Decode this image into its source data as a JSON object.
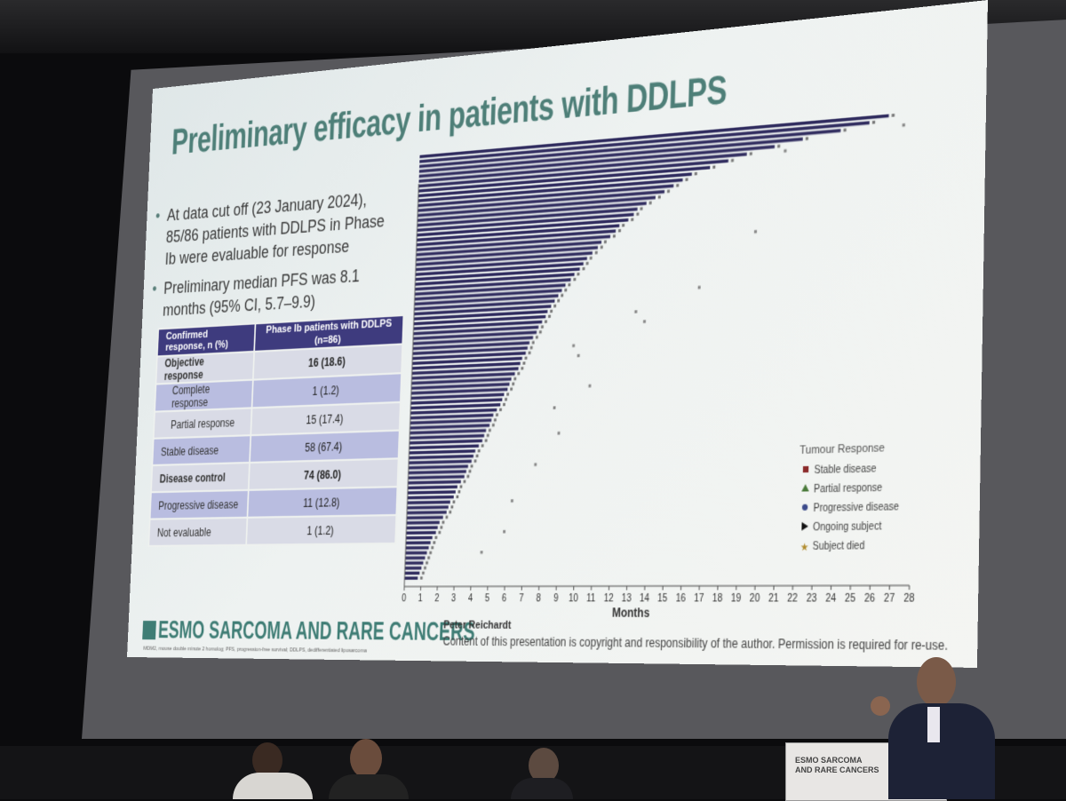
{
  "slide": {
    "title": "Preliminary efficacy in patients with DDLPS",
    "bullets": [
      "At data cut off (23 January 2024), 85/86 patients with DDLPS in Phase Ib were evaluable for response",
      "Preliminary median PFS was 8.1 months (95% CI, 5.7–9.9)"
    ],
    "table": {
      "header_col1": "Confirmed response, n (%)",
      "header_col2": "Phase Ib patients with DDLPS (n=86)",
      "rows": [
        {
          "label": "Objective response",
          "value": "16 (18.6)"
        },
        {
          "label": "Complete response",
          "value": "1 (1.2)"
        },
        {
          "label": "Partial response",
          "value": "15 (17.4)"
        },
        {
          "label": "Stable disease",
          "value": "58 (67.4)"
        },
        {
          "label": "Disease control",
          "value": "74 (86.0)"
        },
        {
          "label": "Progressive disease",
          "value": "11 (12.8)"
        },
        {
          "label": "Not evaluable",
          "value": "1 (1.2)"
        }
      ]
    },
    "footer": {
      "logo": "ESMO SARCOMA AND RARE CANCERS",
      "presenter": "Peter Reichardt",
      "copyright": "Content of this presentation is copyright and responsibility of the author. Permission is required for re-use.",
      "abbreviations": "MDM2, mouse double minute 2 homolog; PFS, progression-free survival; DDLPS, dedifferentiated liposarcoma"
    }
  },
  "chart_data": {
    "type": "bar",
    "orientation": "horizontal swimmer plot",
    "xlabel": "Months",
    "xlim": [
      0,
      28
    ],
    "x_ticks": [
      "0",
      "1",
      "2",
      "3",
      "4",
      "5",
      "6",
      "7",
      "8",
      "9",
      "10",
      "11",
      "12",
      "13",
      "14",
      "15",
      "16",
      "17",
      "18",
      "19",
      "20",
      "21",
      "22",
      "23",
      "24",
      "25",
      "26",
      "27",
      "28"
    ],
    "legend_title": "Tumour Response",
    "legend": [
      {
        "label": "Stable disease",
        "symbol": "square",
        "color": "#8b2a2a"
      },
      {
        "label": "Partial response",
        "symbol": "triangle",
        "color": "#4a7a3a"
      },
      {
        "label": "Progressive disease",
        "symbol": "circle",
        "color": "#3b4a8a"
      },
      {
        "label": "Ongoing subject",
        "symbol": "arrow",
        "color": "#111111"
      },
      {
        "label": "Subject died",
        "symbol": "star",
        "color": "#b08a2a"
      }
    ],
    "bar_color": "#2f2b5e",
    "n_patients": 86,
    "bar_lengths_months": [
      26.5,
      25.5,
      24,
      22,
      20.5,
      19,
      18,
      17,
      16,
      15.5,
      15,
      14.5,
      14,
      13.5,
      13,
      12.8,
      12.5,
      12,
      11.8,
      11.5,
      11,
      10.8,
      10.5,
      10.2,
      10,
      9.8,
      9.5,
      9.3,
      9,
      8.8,
      8.6,
      8.4,
      8.2,
      8,
      7.9,
      7.7,
      7.5,
      7.4,
      7.2,
      7,
      6.9,
      6.8,
      6.6,
      6.5,
      6.4,
      6.2,
      6,
      5.9,
      5.8,
      5.6,
      5.5,
      5.4,
      5.2,
      5,
      4.9,
      4.8,
      4.6,
      4.5,
      4.4,
      4.2,
      4,
      3.9,
      3.8,
      3.6,
      3.5,
      3.4,
      3.2,
      3,
      2.9,
      2.8,
      2.6,
      2.5,
      2.4,
      2.2,
      2,
      1.9,
      1.8,
      1.6,
      1.5,
      1.4,
      1.3,
      1.2,
      1.1,
      1,
      0.9,
      0.8
    ],
    "extra_markers_months": [
      {
        "row": 2,
        "x": 27.2
      },
      {
        "row": 5,
        "x": 21
      },
      {
        "row": 20,
        "x": 19.5
      },
      {
        "row": 30,
        "x": 16.5
      },
      {
        "row": 34,
        "x": 13
      },
      {
        "row": 36,
        "x": 13.5
      },
      {
        "row": 40,
        "x": 9.5
      },
      {
        "row": 42,
        "x": 9.8
      },
      {
        "row": 48,
        "x": 10.5
      },
      {
        "row": 52,
        "x": 8.5
      },
      {
        "row": 57,
        "x": 8.8
      },
      {
        "row": 63,
        "x": 7.5
      },
      {
        "row": 70,
        "x": 6.2
      },
      {
        "row": 76,
        "x": 5.8
      },
      {
        "row": 80,
        "x": 4.5
      }
    ]
  },
  "scene": {
    "podium_logo": "ESMO SARCOMA AND RARE CANCERS"
  }
}
